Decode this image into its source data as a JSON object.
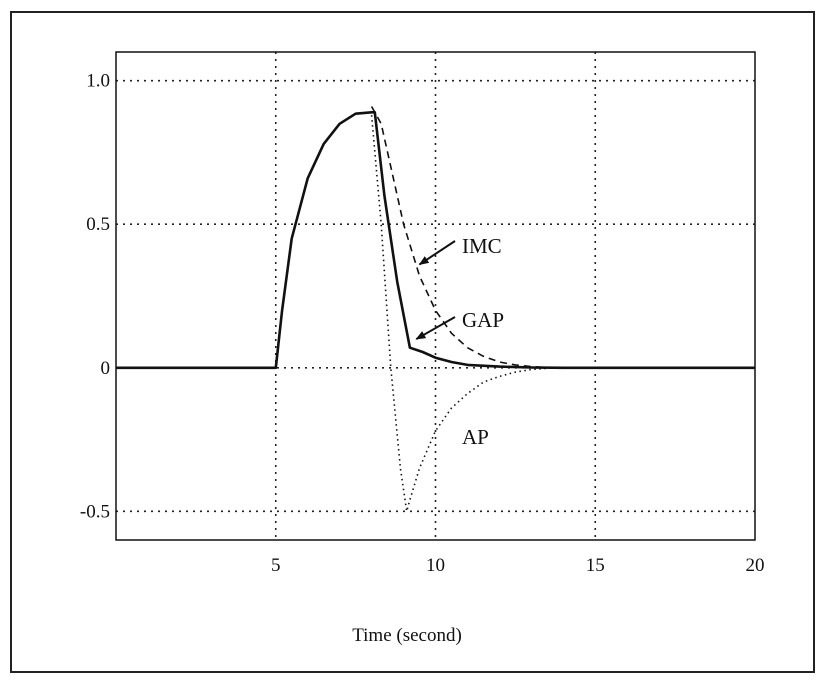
{
  "chart_data": {
    "type": "line",
    "title": "",
    "xlabel": "Time (second)",
    "ylabel": "",
    "xlim": [
      0,
      20
    ],
    "ylim": [
      -0.6,
      1.1
    ],
    "grid": true,
    "x_ticks": [
      {
        "value": 5,
        "label": "5"
      },
      {
        "value": 10,
        "label": "10"
      },
      {
        "value": 15,
        "label": "15"
      },
      {
        "value": 20,
        "label": "20"
      }
    ],
    "y_ticks": [
      {
        "value": 1.0,
        "label": "1.0"
      },
      {
        "value": 0.5,
        "label": "0.5"
      },
      {
        "value": 0,
        "label": "0"
      },
      {
        "value": -0.5,
        "label": "-0.5"
      }
    ],
    "series": [
      {
        "key": "gap",
        "name": "GAP",
        "style": "solid",
        "x": [
          0,
          5,
          5.2,
          5.5,
          6,
          6.5,
          7,
          7.5,
          8,
          8.1,
          8.4,
          8.8,
          9.2,
          9.6,
          10,
          10.5,
          11,
          12,
          13,
          14,
          20
        ],
        "y": [
          0,
          0,
          0.2,
          0.45,
          0.66,
          0.78,
          0.85,
          0.885,
          0.89,
          0.89,
          0.6,
          0.3,
          0.07,
          0.055,
          0.035,
          0.02,
          0.01,
          0.004,
          0.001,
          0,
          0
        ]
      },
      {
        "key": "imc",
        "name": "IMC",
        "style": "dashed",
        "x": [
          8,
          8.3,
          8.6,
          9,
          9.5,
          10,
          10.5,
          11,
          11.5,
          12,
          12.5,
          13,
          13.5,
          14
        ],
        "y": [
          0.91,
          0.85,
          0.7,
          0.5,
          0.32,
          0.2,
          0.12,
          0.07,
          0.04,
          0.02,
          0.01,
          0.004,
          0.001,
          0
        ]
      },
      {
        "key": "ap",
        "name": "AP",
        "style": "dotted",
        "x": [
          8,
          8.3,
          8.6,
          8.9,
          9.1,
          9.2,
          9.5,
          10,
          10.5,
          11,
          11.5,
          12,
          12.5,
          13,
          13.5,
          14
        ],
        "y": [
          0.88,
          0.5,
          0.0,
          -0.35,
          -0.5,
          -0.46,
          -0.35,
          -0.22,
          -0.14,
          -0.09,
          -0.05,
          -0.03,
          -0.015,
          -0.006,
          -0.002,
          0
        ]
      }
    ],
    "annotations": [
      {
        "key": "imc",
        "text": "IMC",
        "arrow": true,
        "target_x": 9.5,
        "target_y": 0.36
      },
      {
        "key": "gap",
        "text": "GAP",
        "arrow": true,
        "target_x": 9.4,
        "target_y": 0.1
      },
      {
        "key": "ap",
        "text": "AP",
        "arrow": false
      }
    ]
  }
}
